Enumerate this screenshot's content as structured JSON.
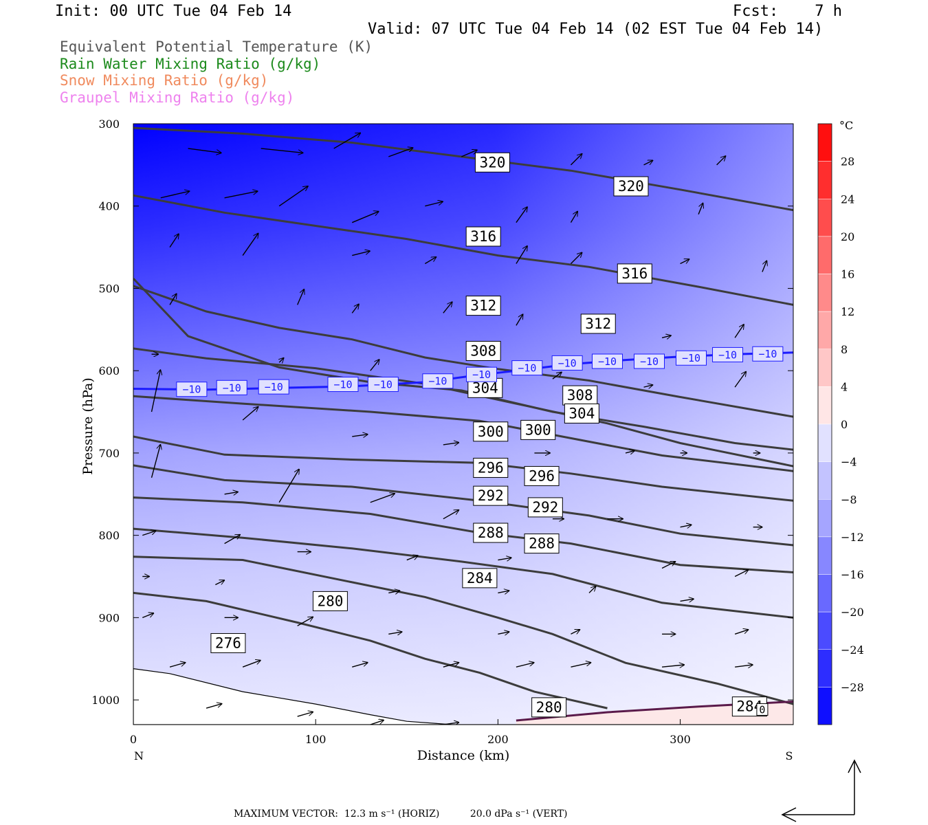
{
  "header": {
    "init": "Init: 00 UTC Tue 04 Feb 14",
    "fcst": "Fcst:    7 h",
    "valid": "Valid: 07 UTC Tue 04 Feb 14 (02 EST Tue 04 Feb 14)"
  },
  "legend": [
    "Equivalent Potential Temperature (K)",
    "Rain Water Mixing Ratio (g/kg)",
    "Snow Mixing Ratio (g/kg)",
    "Graupel Mixing Ratio (g/kg)"
  ],
  "colors": {
    "theta_e": "#555555",
    "rain": "#1b8a1b",
    "snow": "#f08a5d",
    "graupel": "#ee82ee",
    "cold": "#0000ff",
    "warm": "#ff0000",
    "minus10_line": "#1a1aff"
  },
  "footer": {
    "max_label": "MAXIMUM VECTOR:",
    "horiz": "12.3 m s⁻¹ (HORIZ)",
    "vert": "20.0 dPa s⁻¹ (VERT)"
  },
  "chart_data": {
    "type": "contour",
    "xlabel": "Distance (km)",
    "ylabel": "Pressure (hPa)",
    "x_ticks": [
      0,
      100,
      200,
      300
    ],
    "y_ticks": [
      300,
      400,
      500,
      600,
      700,
      800,
      900,
      1000
    ],
    "xlim": [
      0,
      362
    ],
    "ylim": [
      1030,
      300
    ],
    "x_end_labels": {
      "left": "N",
      "right": "S"
    },
    "colorbar": {
      "unit": "°C",
      "tick_labels": [
        "28",
        "24",
        "20",
        "16",
        "12",
        "8",
        "4",
        "0",
        "−4",
        "−8",
        "−12",
        "−16",
        "−20",
        "−24",
        "−28"
      ],
      "levels": [
        28,
        24,
        20,
        16,
        12,
        8,
        4,
        0,
        -4,
        -8,
        -12,
        -16,
        -20,
        -24,
        -28
      ],
      "range": [
        -32,
        32
      ]
    },
    "theta_e_contours": [
      {
        "label": "320",
        "points": [
          [
            0,
            305
          ],
          [
            60,
            312
          ],
          [
            120,
            323
          ],
          [
            180,
            340
          ],
          [
            240,
            357
          ],
          [
            300,
            380
          ],
          [
            362,
            405
          ]
        ],
        "label_at": [
          [
            197,
            347
          ],
          [
            273,
            376
          ]
        ]
      },
      {
        "label": "316",
        "points": [
          [
            0,
            387
          ],
          [
            50,
            408
          ],
          [
            100,
            424
          ],
          [
            150,
            440
          ],
          [
            200,
            460
          ],
          [
            250,
            474
          ],
          [
            310,
            498
          ],
          [
            362,
            520
          ]
        ],
        "label_at": [
          [
            192,
            437
          ],
          [
            275,
            482
          ]
        ]
      },
      {
        "label": "312",
        "points": [
          [
            0,
            497
          ],
          [
            40,
            528
          ],
          [
            80,
            548
          ],
          [
            120,
            562
          ],
          [
            160,
            584
          ],
          [
            200,
            598
          ],
          [
            250,
            612
          ],
          [
            300,
            632
          ],
          [
            362,
            656
          ]
        ],
        "label_at": [
          [
            192,
            521
          ],
          [
            255,
            543
          ]
        ]
      },
      {
        "label": "308",
        "points": [
          [
            0,
            488
          ],
          [
            30,
            558
          ],
          [
            80,
            596
          ],
          [
            130,
            614
          ],
          [
            180,
            624
          ],
          [
            230,
            650
          ],
          [
            280,
            668
          ],
          [
            330,
            688
          ],
          [
            362,
            696
          ]
        ],
        "label_at": [
          [
            192,
            576
          ],
          [
            245,
            630
          ]
        ]
      },
      {
        "label": "304",
        "points": [
          [
            0,
            573
          ],
          [
            40,
            585
          ],
          [
            100,
            597
          ],
          [
            160,
            616
          ],
          [
            210,
            640
          ],
          [
            260,
            664
          ],
          [
            300,
            688
          ],
          [
            362,
            716
          ]
        ],
        "label_at": [
          [
            193,
            621
          ],
          [
            246,
            652
          ]
        ]
      },
      {
        "label": "300",
        "points": [
          [
            0,
            631
          ],
          [
            60,
            640
          ],
          [
            130,
            650
          ],
          [
            190,
            661
          ],
          [
            240,
            682
          ],
          [
            290,
            703
          ],
          [
            362,
            722
          ]
        ],
        "label_at": [
          [
            196,
            674
          ],
          [
            222,
            672
          ]
        ]
      },
      {
        "label": "296",
        "points": [
          [
            0,
            680
          ],
          [
            50,
            702
          ],
          [
            120,
            708
          ],
          [
            190,
            712
          ],
          [
            240,
            725
          ],
          [
            290,
            741
          ],
          [
            362,
            758
          ]
        ],
        "label_at": [
          [
            196,
            718
          ],
          [
            224,
            728
          ]
        ]
      },
      {
        "label": "292",
        "points": [
          [
            0,
            715
          ],
          [
            50,
            733
          ],
          [
            120,
            741
          ],
          [
            190,
            758
          ],
          [
            250,
            776
          ],
          [
            300,
            798
          ],
          [
            362,
            812
          ]
        ],
        "label_at": [
          [
            196,
            752
          ],
          [
            226,
            766
          ]
        ]
      },
      {
        "label": "288",
        "points": [
          [
            0,
            754
          ],
          [
            60,
            760
          ],
          [
            130,
            774
          ],
          [
            190,
            797
          ],
          [
            240,
            810
          ],
          [
            300,
            836
          ],
          [
            362,
            845
          ]
        ],
        "label_at": [
          [
            196,
            797
          ],
          [
            224,
            810
          ]
        ]
      },
      {
        "label": "284",
        "points": [
          [
            0,
            792
          ],
          [
            60,
            803
          ],
          [
            120,
            816
          ],
          [
            180,
            832
          ],
          [
            230,
            847
          ],
          [
            290,
            882
          ],
          [
            362,
            900
          ]
        ],
        "label_at": [
          [
            190,
            852
          ],
          [
            338,
            1008
          ]
        ]
      },
      {
        "label": "280",
        "points": [
          [
            0,
            826
          ],
          [
            60,
            830
          ],
          [
            120,
            857
          ],
          [
            160,
            875
          ],
          [
            200,
            900
          ],
          [
            230,
            920
          ],
          [
            270,
            955
          ],
          [
            320,
            980
          ],
          [
            362,
            1005
          ]
        ],
        "label_at": [
          [
            108,
            880
          ],
          [
            228,
            1009
          ]
        ]
      },
      {
        "label": "276",
        "points": [
          [
            0,
            870
          ],
          [
            40,
            880
          ],
          [
            90,
            906
          ],
          [
            130,
            928
          ],
          [
            160,
            950
          ],
          [
            190,
            967
          ],
          [
            220,
            990
          ],
          [
            260,
            1010
          ]
        ],
        "label_at": [
          [
            52,
            931
          ]
        ]
      }
    ],
    "minus10_isotherm": {
      "label": "−10",
      "points": [
        [
          0,
          622
        ],
        [
          40,
          623
        ],
        [
          80,
          621
        ],
        [
          120,
          619
        ],
        [
          160,
          614
        ],
        [
          190,
          605
        ],
        [
          210,
          600
        ],
        [
          240,
          592
        ],
        [
          270,
          587
        ],
        [
          300,
          583
        ],
        [
          330,
          580
        ],
        [
          362,
          578
        ]
      ],
      "label_at": [
        [
          32,
          623
        ],
        [
          54,
          621
        ],
        [
          77,
          620
        ],
        [
          115,
          617
        ],
        [
          137,
          617
        ],
        [
          167,
          613
        ],
        [
          191,
          605
        ],
        [
          216,
          597
        ],
        [
          238,
          591
        ],
        [
          260,
          589
        ],
        [
          283,
          589
        ],
        [
          306,
          585
        ],
        [
          326,
          581
        ],
        [
          348,
          580
        ]
      ]
    },
    "zero_isotherm": {
      "label": "0",
      "points": [
        [
          210,
          1025
        ],
        [
          260,
          1015
        ],
        [
          310,
          1008
        ],
        [
          362,
          1002
        ]
      ],
      "label_at": [
        [
          345,
          1012
        ]
      ]
    },
    "wind_vectors": [
      [
        30,
        330,
        30,
        4
      ],
      [
        70,
        330,
        38,
        4
      ],
      [
        110,
        330,
        24,
        -14
      ],
      [
        140,
        340,
        22,
        -8
      ],
      [
        180,
        340,
        14,
        -6
      ],
      [
        240,
        350,
        10,
        -10
      ],
      [
        280,
        350,
        8,
        -4
      ],
      [
        320,
        350,
        8,
        -8
      ],
      [
        15,
        390,
        26,
        -6
      ],
      [
        50,
        390,
        30,
        -6
      ],
      [
        80,
        400,
        26,
        -18
      ],
      [
        120,
        420,
        24,
        -10
      ],
      [
        160,
        400,
        16,
        -4
      ],
      [
        210,
        420,
        10,
        -14
      ],
      [
        240,
        420,
        6,
        -10
      ],
      [
        310,
        410,
        4,
        -10
      ],
      [
        20,
        450,
        8,
        -12
      ],
      [
        60,
        460,
        14,
        -20
      ],
      [
        120,
        460,
        16,
        -4
      ],
      [
        160,
        470,
        10,
        -6
      ],
      [
        210,
        470,
        10,
        -16
      ],
      [
        240,
        470,
        10,
        -10
      ],
      [
        300,
        470,
        8,
        -4
      ],
      [
        345,
        480,
        4,
        -10
      ],
      [
        20,
        520,
        6,
        -10
      ],
      [
        90,
        520,
        6,
        -14
      ],
      [
        120,
        530,
        6,
        -8
      ],
      [
        170,
        530,
        8,
        -10
      ],
      [
        210,
        545,
        6,
        -10
      ],
      [
        290,
        560,
        8,
        -2
      ],
      [
        330,
        560,
        8,
        -12
      ],
      [
        10,
        580,
        6,
        0
      ],
      [
        80,
        590,
        4,
        -4
      ],
      [
        130,
        600,
        8,
        -10
      ],
      [
        170,
        610,
        6,
        -2
      ],
      [
        230,
        610,
        8,
        -6
      ],
      [
        280,
        620,
        8,
        -2
      ],
      [
        330,
        620,
        10,
        -14
      ],
      [
        10,
        650,
        8,
        -38
      ],
      [
        60,
        660,
        14,
        -12
      ],
      [
        120,
        680,
        14,
        -2
      ],
      [
        170,
        690,
        14,
        -2
      ],
      [
        220,
        700,
        14,
        0
      ],
      [
        270,
        700,
        8,
        -2
      ],
      [
        300,
        700,
        6,
        0
      ],
      [
        340,
        700,
        6,
        0
      ],
      [
        10,
        730,
        8,
        -30
      ],
      [
        50,
        750,
        12,
        -2
      ],
      [
        80,
        760,
        18,
        -30
      ],
      [
        130,
        760,
        22,
        -8
      ],
      [
        170,
        780,
        14,
        -8
      ],
      [
        230,
        780,
        10,
        0
      ],
      [
        260,
        780,
        14,
        0
      ],
      [
        300,
        790,
        10,
        -2
      ],
      [
        340,
        790,
        8,
        0
      ],
      [
        5,
        800,
        12,
        -4
      ],
      [
        50,
        810,
        14,
        -8
      ],
      [
        90,
        820,
        12,
        0
      ],
      [
        150,
        830,
        10,
        -4
      ],
      [
        200,
        830,
        12,
        -2
      ],
      [
        290,
        840,
        12,
        -6
      ],
      [
        330,
        850,
        12,
        -6
      ],
      [
        5,
        850,
        6,
        0
      ],
      [
        45,
        860,
        8,
        -4
      ],
      [
        140,
        870,
        10,
        -2
      ],
      [
        200,
        870,
        10,
        -2
      ],
      [
        250,
        870,
        6,
        -6
      ],
      [
        300,
        880,
        12,
        -2
      ],
      [
        5,
        900,
        10,
        -4
      ],
      [
        50,
        900,
        12,
        0
      ],
      [
        90,
        910,
        14,
        -8
      ],
      [
        140,
        920,
        12,
        -2
      ],
      [
        200,
        920,
        10,
        -2
      ],
      [
        240,
        920,
        8,
        -4
      ],
      [
        290,
        920,
        12,
        0
      ],
      [
        330,
        920,
        12,
        -4
      ],
      [
        20,
        960,
        14,
        -4
      ],
      [
        60,
        960,
        16,
        -6
      ],
      [
        120,
        960,
        14,
        -4
      ],
      [
        170,
        960,
        14,
        -4
      ],
      [
        210,
        960,
        16,
        -4
      ],
      [
        240,
        960,
        18,
        -4
      ],
      [
        290,
        960,
        20,
        -2
      ],
      [
        330,
        960,
        16,
        -2
      ],
      [
        40,
        1010,
        14,
        -4
      ],
      [
        90,
        1020,
        14,
        -4
      ],
      [
        130,
        1030,
        12,
        -4
      ],
      [
        170,
        1030,
        14,
        -2
      ],
      [
        220,
        1035,
        10,
        -2
      ],
      [
        260,
        1035,
        14,
        0
      ],
      [
        300,
        1035,
        14,
        0
      ],
      [
        340,
        1035,
        14,
        0
      ]
    ]
  }
}
